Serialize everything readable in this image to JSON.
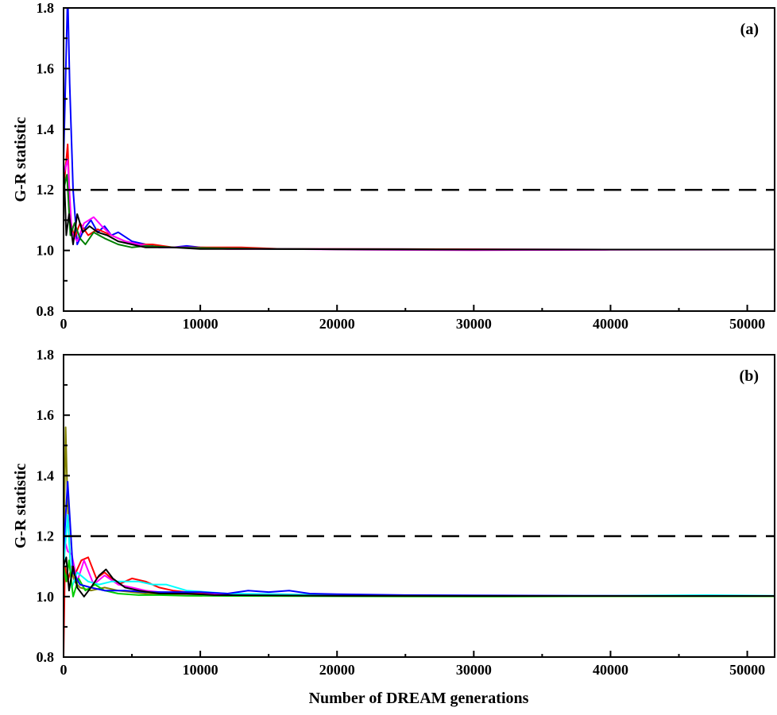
{
  "figure": {
    "xlabel": "Number of DREAM generations"
  },
  "chart_data": [
    {
      "type": "line",
      "panel_label": "(a)",
      "xlabel": "Number of DREAM generations",
      "ylabel": "G-R statistic",
      "xlim": [
        0,
        52000
      ],
      "ylim": [
        0.8,
        1.8
      ],
      "x_ticks": [
        0,
        10000,
        20000,
        30000,
        40000,
        50000
      ],
      "x_tick_labels": [
        "0",
        "10000",
        "20000",
        "30000",
        "40000",
        "50000"
      ],
      "y_ticks": [
        0.8,
        1.0,
        1.2,
        1.4,
        1.6,
        1.8
      ],
      "y_tick_labels": [
        "0.8",
        "1.0",
        "1.2",
        "1.4",
        "1.6",
        "1.8"
      ],
      "threshold": 1.2,
      "grid": false,
      "series": [
        {
          "color": "#0000ff",
          "x": [
            0,
            300,
            450,
            700,
            1000,
            1500,
            2000,
            2500,
            3000,
            3500,
            4000,
            5000,
            6000,
            7000,
            8000,
            9000,
            10000,
            15000,
            20000,
            30000,
            40000,
            52000
          ],
          "y": [
            1.3,
            1.85,
            1.55,
            1.2,
            1.02,
            1.07,
            1.1,
            1.06,
            1.08,
            1.05,
            1.06,
            1.03,
            1.02,
            1.01,
            1.01,
            1.015,
            1.01,
            1.005,
            1.005,
            1.004,
            1.003,
            1.003
          ]
        },
        {
          "color": "#ff0000",
          "x": [
            0,
            300,
            500,
            800,
            1200,
            1800,
            2500,
            3500,
            4500,
            5500,
            6500,
            8000,
            10000,
            13000,
            16000,
            20000,
            30000,
            40000,
            52000
          ],
          "y": [
            1.2,
            1.35,
            1.1,
            1.04,
            1.09,
            1.05,
            1.07,
            1.05,
            1.03,
            1.02,
            1.02,
            1.01,
            1.01,
            1.01,
            1.005,
            1.005,
            1.004,
            1.003,
            1.003
          ]
        },
        {
          "color": "#ff00ff",
          "x": [
            0,
            300,
            600,
            1000,
            1500,
            2200,
            2800,
            3500,
            4500,
            5500,
            7000,
            9000,
            12000,
            16000,
            22000,
            30000,
            40000,
            52000
          ],
          "y": [
            1.25,
            1.3,
            1.06,
            1.03,
            1.09,
            1.11,
            1.08,
            1.05,
            1.03,
            1.02,
            1.01,
            1.01,
            1.005,
            1.005,
            1.002,
            1.001,
            1.002,
            1.003
          ]
        },
        {
          "color": "#008000",
          "x": [
            0,
            250,
            500,
            800,
            1200,
            1600,
            2200,
            3000,
            4000,
            5000,
            6000,
            8000,
            10000,
            15000,
            20000,
            30000,
            40000,
            52000
          ],
          "y": [
            1.2,
            1.25,
            1.05,
            1.09,
            1.04,
            1.02,
            1.06,
            1.04,
            1.02,
            1.01,
            1.015,
            1.01,
            1.008,
            1.005,
            1.004,
            1.003,
            1.003,
            1.003
          ]
        },
        {
          "color": "#000000",
          "x": [
            0,
            200,
            400,
            700,
            1000,
            1400,
            1900,
            2500,
            3200,
            4000,
            5000,
            6000,
            8000,
            10000,
            15000,
            20000,
            30000,
            40000,
            52000
          ],
          "y": [
            1.3,
            1.05,
            1.12,
            1.02,
            1.12,
            1.06,
            1.08,
            1.06,
            1.05,
            1.03,
            1.02,
            1.01,
            1.01,
            1.005,
            1.005,
            1.004,
            1.003,
            1.003,
            1.003
          ]
        }
      ]
    },
    {
      "type": "line",
      "panel_label": "(b)",
      "xlabel": "Number of DREAM generations",
      "ylabel": "G-R statistic",
      "xlim": [
        0,
        52000
      ],
      "ylim": [
        0.8,
        1.8
      ],
      "x_ticks": [
        0,
        10000,
        20000,
        30000,
        40000,
        50000
      ],
      "x_tick_labels": [
        "0",
        "10000",
        "20000",
        "30000",
        "40000",
        "50000"
      ],
      "y_ticks": [
        0.8,
        1.0,
        1.2,
        1.4,
        1.6,
        1.8
      ],
      "y_tick_labels": [
        "0.8",
        "1.0",
        "1.2",
        "1.4",
        "1.6",
        "1.8"
      ],
      "threshold": 1.2,
      "grid": false,
      "series": [
        {
          "color": "#808000",
          "x": [
            0,
            150,
            300,
            500,
            800,
            1200,
            2000,
            3000,
            4000,
            6000,
            8000,
            10000,
            15000,
            20000,
            30000,
            40000,
            52000
          ],
          "y": [
            1.1,
            1.56,
            1.3,
            1.1,
            1.05,
            1.03,
            1.02,
            1.03,
            1.02,
            1.01,
            1.005,
            1.005,
            1.003,
            1.002,
            1.001,
            1.001,
            1.001
          ]
        },
        {
          "color": "#ff0000",
          "x": [
            0,
            100,
            300,
            600,
            900,
            1300,
            1800,
            2400,
            3000,
            4000,
            5000,
            6000,
            7000,
            8000,
            10000,
            15000,
            20000,
            30000,
            40000,
            52000
          ],
          "y": [
            0.8,
            1.1,
            1.05,
            1.1,
            1.08,
            1.12,
            1.13,
            1.06,
            1.08,
            1.04,
            1.06,
            1.05,
            1.03,
            1.02,
            1.01,
            1.008,
            1.005,
            1.003,
            1.002,
            1.002
          ]
        },
        {
          "color": "#ff00ff",
          "x": [
            0,
            300,
            600,
            1000,
            1500,
            2200,
            3000,
            4000,
            5000,
            6000,
            8000,
            10000,
            14000,
            20000,
            30000,
            40000,
            52000
          ],
          "y": [
            1.2,
            1.15,
            1.14,
            1.05,
            1.12,
            1.04,
            1.07,
            1.04,
            1.03,
            1.02,
            1.01,
            1.008,
            1.005,
            1.003,
            1.002,
            1.002,
            1.002
          ]
        },
        {
          "color": "#00ffff",
          "x": [
            0,
            300,
            600,
            1000,
            1800,
            2600,
            3500,
            4500,
            5500,
            6500,
            7500,
            9000,
            12000,
            16000,
            20000,
            30000,
            40000,
            47000,
            52000
          ],
          "y": [
            1.1,
            1.27,
            1.03,
            1.08,
            1.05,
            1.04,
            1.05,
            1.05,
            1.05,
            1.04,
            1.04,
            1.02,
            1.01,
            1.008,
            1.005,
            1.003,
            1.003,
            1.005,
            1.003
          ]
        },
        {
          "color": "#00cc00",
          "x": [
            0,
            200,
            400,
            700,
            1100,
            1600,
            2300,
            3000,
            4000,
            5500,
            7000,
            9000,
            12000,
            20000,
            30000,
            40000,
            52000
          ],
          "y": [
            1.1,
            1.05,
            1.12,
            1.0,
            1.06,
            1.02,
            1.04,
            1.02,
            1.01,
            1.005,
            1.005,
            1.003,
            1.002,
            1.001,
            1.0,
            1.001,
            1.001
          ]
        },
        {
          "color": "#0000ff",
          "x": [
            0,
            300,
            700,
            1200,
            2000,
            3000,
            4500,
            6000,
            8000,
            10000,
            12000,
            13500,
            15000,
            16500,
            18000,
            20000,
            25000,
            30000,
            38000,
            45000,
            52000
          ],
          "y": [
            1.15,
            1.38,
            1.08,
            1.04,
            1.03,
            1.02,
            1.02,
            1.015,
            1.015,
            1.015,
            1.01,
            1.02,
            1.015,
            1.02,
            1.01,
            1.008,
            1.005,
            1.004,
            1.003,
            1.002,
            1.002
          ]
        },
        {
          "color": "#000000",
          "x": [
            0,
            200,
            400,
            700,
            1000,
            1500,
            2000,
            2600,
            3100,
            3600,
            4500,
            5500,
            7000,
            9000,
            11000,
            15000,
            20000,
            30000,
            40000,
            52000
          ],
          "y": [
            1.1,
            1.13,
            1.02,
            1.1,
            1.03,
            1.0,
            1.03,
            1.07,
            1.09,
            1.06,
            1.03,
            1.02,
            1.01,
            1.01,
            1.005,
            1.004,
            1.003,
            1.002,
            1.002,
            1.002
          ]
        }
      ]
    }
  ]
}
